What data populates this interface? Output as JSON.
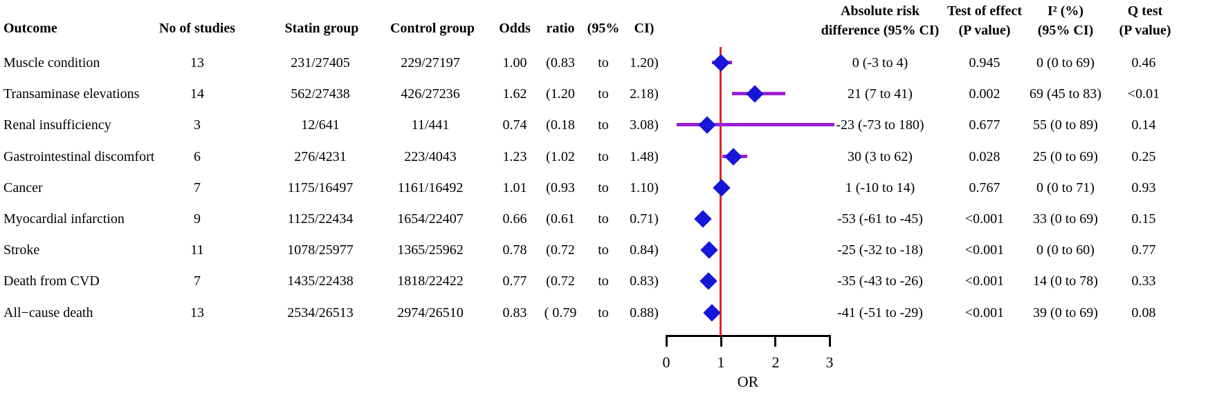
{
  "header": {
    "outcome": "Outcome",
    "n_studies": "No of studies",
    "statin": "Statin group",
    "control": "Control group",
    "odds": "Odds",
    "ratio": "ratio",
    "ci95_open": "(95%",
    "ci_close": "CI)",
    "ard_l1": "Absolute risk",
    "ard_l2": "difference (95% CI)",
    "effect_l1": "Test of effect",
    "effect_l2": "(P value)",
    "i2_l1": "I² (%)",
    "i2_l2": "(95% CI)",
    "q_l1": "Q test",
    "q_l2": "(P value)"
  },
  "axis": {
    "ticks": [
      "0",
      "1",
      "2",
      "3"
    ],
    "label": "OR"
  },
  "colors": {
    "diamond": "#1717d9",
    "ci_line": "#9b1fd6",
    "ref_line": "#e32320",
    "axis": "#000000"
  },
  "chart_data": {
    "type": "scatter",
    "subtype": "forest-plot",
    "xlabel": "OR",
    "xlim": [
      0,
      3
    ],
    "x_ticks": [
      0,
      1,
      2,
      3
    ],
    "reference_line_x": 1,
    "grid": false,
    "rows": [
      {
        "outcome": "Muscle condition",
        "n_studies": "13",
        "statin": "231/27405",
        "control": "229/27197",
        "or": 1.0,
        "ci_low": 0.83,
        "ci_high": 1.2,
        "or_text": "1.00",
        "ci_low_text": "(0.83",
        "to_text": "to",
        "ci_high_text": "1.20)",
        "ard": "0 (-3 to 4)",
        "p_effect": "0.945",
        "i2": "0 (0 to 69)",
        "q_test": "0.46"
      },
      {
        "outcome": "Transaminase elevations",
        "n_studies": "14",
        "statin": "562/27438",
        "control": "426/27236",
        "or": 1.62,
        "ci_low": 1.2,
        "ci_high": 2.18,
        "or_text": "1.62",
        "ci_low_text": "(1.20",
        "to_text": "to",
        "ci_high_text": "2.18)",
        "ard": "21 (7 to 41)",
        "p_effect": "0.002",
        "i2": "69 (45 to 83)",
        "q_test": "<0.01"
      },
      {
        "outcome": "Renal insufficiency",
        "n_studies": "3",
        "statin": "12/641",
        "control": "11/441",
        "or": 0.74,
        "ci_low": 0.18,
        "ci_high": 3.08,
        "or_text": "0.74",
        "ci_low_text": "(0.18",
        "to_text": "to",
        "ci_high_text": "3.08)",
        "ard": "-23 (-73 to 180)",
        "p_effect": "0.677",
        "i2": "55 (0 to 89)",
        "q_test": "0.14"
      },
      {
        "outcome": "Gastrointestinal discomfort",
        "n_studies": "6",
        "statin": "276/4231",
        "control": "223/4043",
        "or": 1.23,
        "ci_low": 1.02,
        "ci_high": 1.48,
        "or_text": "1.23",
        "ci_low_text": "(1.02",
        "to_text": "to",
        "ci_high_text": "1.48)",
        "ard": "30 (3 to 62)",
        "p_effect": "0.028",
        "i2": "25 (0 to 69)",
        "q_test": "0.25"
      },
      {
        "outcome": "Cancer",
        "n_studies": "7",
        "statin": "1175/16497",
        "control": "1161/16492",
        "or": 1.01,
        "ci_low": 0.93,
        "ci_high": 1.1,
        "or_text": "1.01",
        "ci_low_text": "(0.93",
        "to_text": "to",
        "ci_high_text": "1.10)",
        "ard": "1 (-10 to 14)",
        "p_effect": "0.767",
        "i2": "0 (0 to 71)",
        "q_test": "0.93"
      },
      {
        "outcome": "Myocardial infarction",
        "n_studies": "9",
        "statin": "1125/22434",
        "control": "1654/22407",
        "or": 0.66,
        "ci_low": 0.61,
        "ci_high": 0.71,
        "or_text": "0.66",
        "ci_low_text": "(0.61",
        "to_text": "to",
        "ci_high_text": "0.71)",
        "ard": "-53 (-61 to -45)",
        "p_effect": "<0.001",
        "i2": "33 (0 to 69)",
        "q_test": "0.15"
      },
      {
        "outcome": "Stroke",
        "n_studies": "11",
        "statin": "1078/25977",
        "control": "1365/25962",
        "or": 0.78,
        "ci_low": 0.72,
        "ci_high": 0.84,
        "or_text": "0.78",
        "ci_low_text": "(0.72",
        "to_text": "to",
        "ci_high_text": "0.84)",
        "ard": "-25 (-32 to -18)",
        "p_effect": "<0.001",
        "i2": "0 (0 to 60)",
        "q_test": "0.77"
      },
      {
        "outcome": "Death from CVD",
        "n_studies": "7",
        "statin": "1435/22438",
        "control": "1818/22422",
        "or": 0.77,
        "ci_low": 0.72,
        "ci_high": 0.83,
        "or_text": "0.77",
        "ci_low_text": "(0.72",
        "to_text": "to",
        "ci_high_text": "0.83)",
        "ard": "-35 (-43 to -26)",
        "p_effect": "<0.001",
        "i2": "14 (0 to 78)",
        "q_test": "0.33"
      },
      {
        "outcome": "All−cause death",
        "n_studies": "13",
        "statin": "2534/26513",
        "control": "2974/26510",
        "or": 0.83,
        "ci_low": 0.79,
        "ci_high": 0.88,
        "or_text": "0.83",
        "ci_low_text": "( 0.79",
        "to_text": "to",
        "ci_high_text": "0.88)",
        "ard": "-41 (-51 to -29)",
        "p_effect": "<0.001",
        "i2": "39 (0 to 69)",
        "q_test": "0.08"
      }
    ]
  }
}
